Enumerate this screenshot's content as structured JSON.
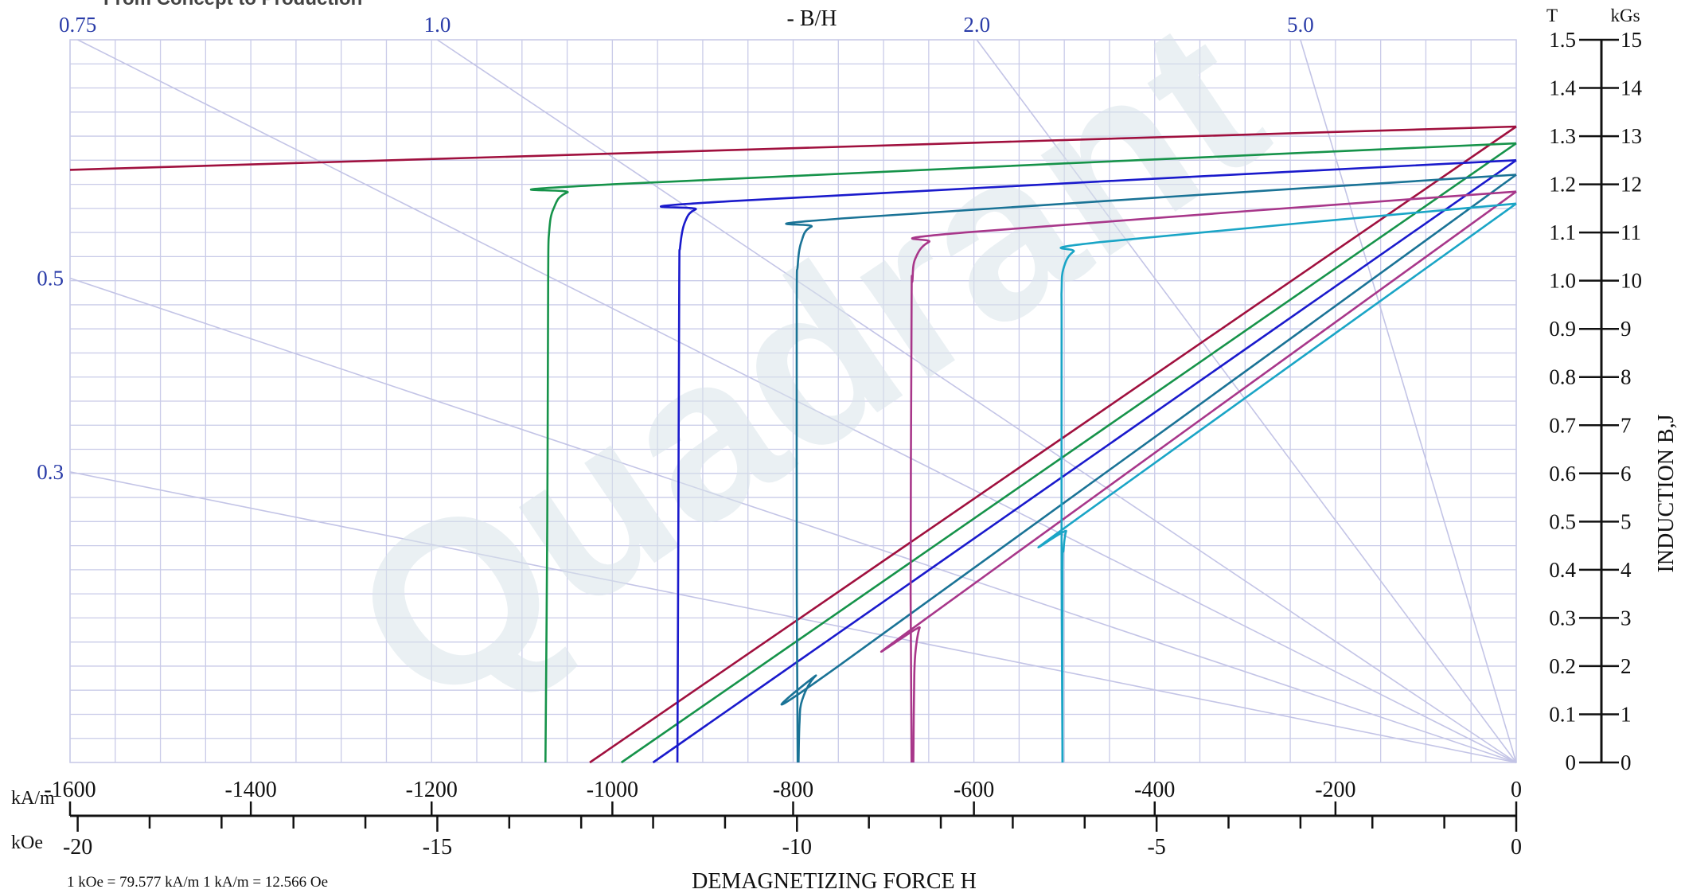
{
  "header": {
    "cut_text": "From Concept to Production",
    "watermark": "Quadrant"
  },
  "chart_data": {
    "type": "line",
    "title": "",
    "xlabel": "DEMAGNETIZING FORCE H",
    "ylabel": "INDUCTION  B,J",
    "x_unit_primary": "kA/m",
    "x_unit_secondary": "kOe",
    "y_unit_primary": "T",
    "y_unit_secondary": "kGs",
    "conversion_note": "1 kOe = 79.577 kA/m   1 kA/m = 12.566 Oe",
    "xlim": [
      -1600,
      0
    ],
    "ylim": [
      0,
      1.5
    ],
    "grid": true,
    "x_ticks_kAm": [
      -1600,
      -1400,
      -1200,
      -1000,
      -800,
      -600,
      -400,
      -200,
      0
    ],
    "x_tick_labels_kAm": [
      "-1600",
      "-1400",
      "-1200",
      "-1000",
      "-800",
      "-600",
      "-400",
      "-200",
      "0"
    ],
    "x_ticks_kOe": [
      -20,
      -15,
      -10,
      -5,
      0
    ],
    "x_tick_labels_kOe": [
      "-20",
      "-15",
      "-10",
      "-5",
      "0"
    ],
    "y_ticks_T": [
      0,
      0.1,
      0.2,
      0.3,
      0.4,
      0.5,
      0.6,
      0.7,
      0.8,
      0.9,
      1.0,
      1.1,
      1.2,
      1.3,
      1.4,
      1.5
    ],
    "y_tick_labels_T": [
      "0",
      "0.1",
      "0.2",
      "0.3",
      "0.4",
      "0.5",
      "0.6",
      "0.7",
      "0.8",
      "0.9",
      "1.0",
      "1.1",
      "1.2",
      "1.3",
      "1.4",
      "1.5"
    ],
    "y_tick_labels_kGs": [
      "0",
      "1",
      "2",
      "3",
      "4",
      "5",
      "6",
      "7",
      "8",
      "9",
      "10",
      "11",
      "12",
      "13",
      "14",
      "15"
    ],
    "load_lines": {
      "label": "- B/H",
      "slopes": [
        0.3,
        0.5,
        0.75,
        1.0,
        2.0,
        5.0
      ],
      "labels": [
        "0.3",
        "0.5",
        "0.75",
        "1.0",
        "2.0",
        "5.0"
      ]
    },
    "series": [
      {
        "color": "#a0103e",
        "br": 1.32,
        "intrinsic": [
          [
            0,
            1.32
          ],
          [
            -1600,
            1.23
          ]
        ],
        "normal": [
          [
            0,
            1.32
          ],
          [
            -1025,
            0
          ]
        ]
      },
      {
        "color": "#16934a",
        "br": 1.285,
        "intrinsic": [
          [
            0,
            1.285
          ],
          [
            -1000,
            1.2
          ],
          [
            -1050,
            1.183
          ],
          [
            -1065,
            1.15
          ],
          [
            -1070,
            1.1
          ],
          [
            -1071,
            1.0
          ],
          [
            -1072,
            0.5
          ],
          [
            -1074,
            0
          ]
        ],
        "normal": [
          [
            0,
            1.285
          ],
          [
            -990,
            0
          ]
        ]
      },
      {
        "color": "#1a1acc",
        "br": 1.25,
        "intrinsic": [
          [
            0,
            1.25
          ],
          [
            -870,
            1.165
          ],
          [
            -908,
            1.148
          ],
          [
            -920,
            1.12
          ],
          [
            -925,
            1.07
          ],
          [
            -926,
            1.0
          ],
          [
            -927,
            0.5
          ],
          [
            -928,
            0
          ]
        ],
        "normal": [
          [
            0,
            1.25
          ],
          [
            -955,
            0
          ]
        ]
      },
      {
        "color": "#1a7396",
        "br": 1.22,
        "intrinsic": [
          [
            0,
            1.22
          ],
          [
            -740,
            1.13
          ],
          [
            -780,
            1.112
          ],
          [
            -791,
            1.08
          ],
          [
            -795,
            1.03
          ],
          [
            -796,
            0.95
          ],
          [
            -796,
            0.4
          ],
          [
            -795,
            0
          ]
        ],
        "normal": [
          [
            0,
            1.22
          ],
          [
            -750,
            0.2
          ],
          [
            -775,
            0.18
          ],
          [
            -790,
            0.13
          ],
          [
            -793,
            0.08
          ],
          [
            -794,
            0
          ]
        ]
      },
      {
        "color": "#a8378a",
        "br": 1.185,
        "intrinsic": [
          [
            0,
            1.185
          ],
          [
            -610,
            1.1
          ],
          [
            -650,
            1.08
          ],
          [
            -665,
            1.045
          ],
          [
            -668,
            1.0
          ],
          [
            -669,
            0.95
          ],
          [
            -670,
            0.35
          ],
          [
            -669,
            0
          ]
        ],
        "normal": [
          [
            0,
            1.185
          ],
          [
            -652,
            0.3
          ],
          [
            -660,
            0.28
          ],
          [
            -664,
            0.24
          ],
          [
            -666,
            0.18
          ],
          [
            -667,
            0
          ]
        ]
      },
      {
        "color": "#1aa5c6",
        "br": 1.16,
        "intrinsic": [
          [
            0,
            1.16
          ],
          [
            -460,
            1.08
          ],
          [
            -490,
            1.06
          ],
          [
            -501,
            1.025
          ],
          [
            -503,
            0.98
          ],
          [
            -503,
            0.9
          ],
          [
            -503,
            0.4
          ],
          [
            -502,
            0
          ]
        ],
        "normal": [
          [
            0,
            1.16
          ],
          [
            -490,
            0.5
          ],
          [
            -498,
            0.48
          ],
          [
            -501,
            0.44
          ],
          [
            -502,
            0.4
          ],
          [
            -502,
            0
          ]
        ]
      }
    ]
  }
}
